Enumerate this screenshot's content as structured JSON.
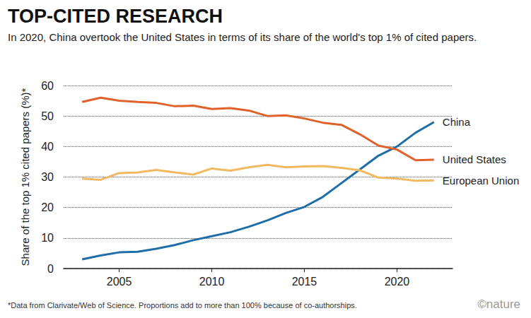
{
  "chart_data": {
    "type": "line",
    "title": "TOP-CITED RESEARCH",
    "subtitle": "In 2020, China overtook the United States in terms of its share of the world's top 1% of cited papers.",
    "y_label": "Share of the top 1% cited papers (%)*",
    "footnote": "*Data from Clarivate/Web of Science. Proportions add to more than 100% because of co-authorships.",
    "credit": "©nature",
    "x": [
      2003,
      2004,
      2005,
      2006,
      2007,
      2008,
      2009,
      2010,
      2011,
      2012,
      2013,
      2014,
      2015,
      2016,
      2017,
      2018,
      2019,
      2020,
      2021,
      2022
    ],
    "series": [
      {
        "name": "China",
        "color": "#1f6ea8",
        "values": [
          3,
          4.3,
          5.3,
          5.5,
          6.5,
          7.7,
          9.3,
          10.6,
          11.9,
          13.7,
          15.8,
          18.2,
          20.2,
          23.5,
          28,
          32.5,
          37,
          40,
          44.5,
          48
        ]
      },
      {
        "name": "United States",
        "color": "#e0622a",
        "values": [
          54.6,
          56,
          55,
          54.6,
          54.3,
          53.2,
          53.4,
          52.3,
          52.6,
          51.8,
          50,
          50.2,
          49.2,
          47.8,
          47.1,
          44,
          40.3,
          39,
          35.5,
          35.7
        ]
      },
      {
        "name": "European Union",
        "color": "#f1b960",
        "values": [
          29.5,
          29.1,
          31.3,
          31.5,
          32.3,
          31.5,
          30.8,
          32.8,
          32.1,
          33.2,
          34,
          33.2,
          33.5,
          33.6,
          33,
          32.2,
          29.8,
          29.5,
          28.8,
          28.9
        ]
      }
    ],
    "xlim": [
      2002,
      2023
    ],
    "xticks": [
      2005,
      2010,
      2015,
      2020
    ],
    "ylim": [
      0,
      60
    ],
    "yticks": [
      0,
      10,
      20,
      30,
      40,
      50,
      60
    ],
    "grid": true
  }
}
